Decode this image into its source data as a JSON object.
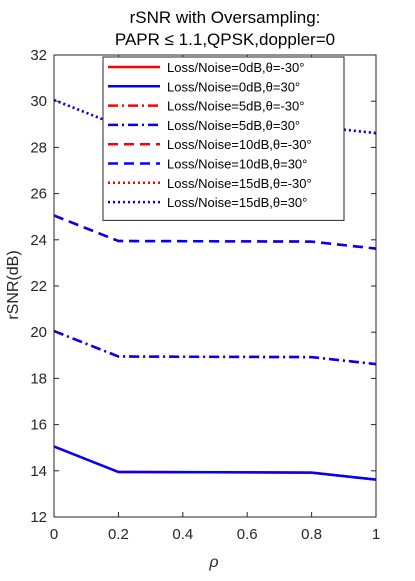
{
  "chart_data": {
    "type": "line",
    "title_line1": "rSNR with Oversampling:",
    "title_line2": "PAPR ≤ 1.1,QPSK,doppler=0",
    "xlabel": "ρ",
    "ylabel": "rSNR(dB)",
    "xlim": [
      0,
      1
    ],
    "ylim": [
      12,
      32
    ],
    "xticks": [
      "0",
      "0.2",
      "0.4",
      "0.6",
      "0.8",
      "1"
    ],
    "yticks": [
      "12",
      "14",
      "16",
      "18",
      "20",
      "22",
      "24",
      "26",
      "28",
      "30",
      "32"
    ],
    "x": [
      0,
      0.2,
      0.8,
      1.0
    ],
    "legend_position": "top",
    "grid": false,
    "series": [
      {
        "name": "Loss/Noise=0dB,θ=-30°",
        "color": "#ff0000",
        "style": "solid",
        "values": [
          15.05,
          13.95,
          13.92,
          13.62
        ]
      },
      {
        "name": "Loss/Noise=0dB,θ=30°",
        "color": "#0000ff",
        "style": "solid",
        "values": [
          15.05,
          13.95,
          13.92,
          13.62
        ]
      },
      {
        "name": "Loss/Noise=5dB,θ=-30°",
        "color": "#ff0000",
        "style": "dashdot",
        "values": [
          20.05,
          18.95,
          18.92,
          18.62
        ]
      },
      {
        "name": "Loss/Noise=5dB,θ=30°",
        "color": "#0000ff",
        "style": "dashdot",
        "values": [
          20.05,
          18.95,
          18.92,
          18.62
        ]
      },
      {
        "name": "Loss/Noise=10dB,θ=-30°",
        "color": "#ff0000",
        "style": "dashed",
        "values": [
          25.05,
          23.95,
          23.92,
          23.62
        ]
      },
      {
        "name": "Loss/Noise=10dB,θ=30°",
        "color": "#0000ff",
        "style": "dashed",
        "values": [
          25.05,
          23.95,
          23.92,
          23.62
        ]
      },
      {
        "name": "Loss/Noise=15dB,θ=-30°",
        "color": "#ff0000",
        "style": "dotted",
        "values": [
          30.05,
          28.95,
          28.92,
          28.62
        ]
      },
      {
        "name": "Loss/Noise=15dB,θ=30°",
        "color": "#0000ff",
        "style": "dotted",
        "values": [
          30.05,
          28.95,
          28.92,
          28.62
        ]
      }
    ]
  }
}
